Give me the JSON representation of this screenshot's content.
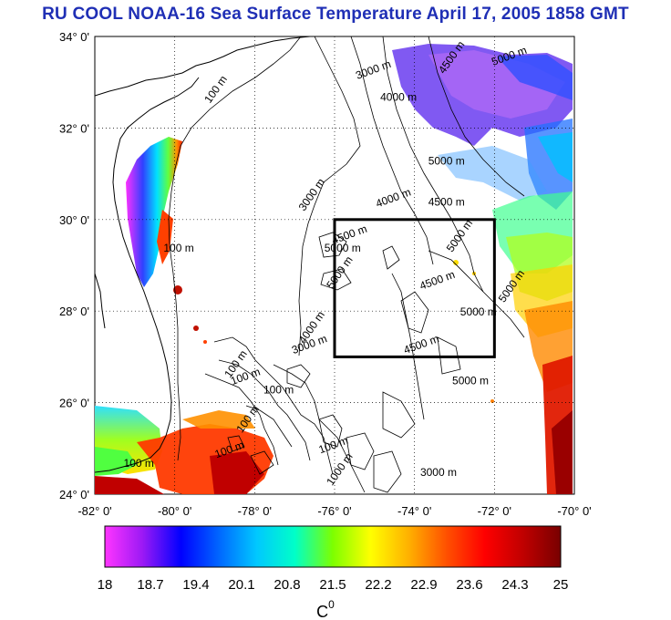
{
  "title": "RU COOL  NOAA-16 Sea Surface Temperature April 17, 2005 1858 GMT",
  "map": {
    "lat_labels": [
      "34° 0'",
      "32° 0'",
      "30° 0'",
      "28° 0'",
      "26° 0'",
      "24° 0'"
    ],
    "lon_labels": [
      "-82° 0'",
      "-80° 0'",
      "-78° 0'",
      "-76° 0'",
      "-74° 0'",
      "-72° 0'",
      "-70° 0'"
    ],
    "lat_range": [
      24,
      34
    ],
    "lon_range": [
      -82,
      -70
    ],
    "study_box": {
      "lon_min": -76,
      "lon_max": -72,
      "lat_min": 27,
      "lat_max": 30
    },
    "contour_labels": [
      {
        "text": "100 m",
        "lon": -78.9,
        "lat": 32.8
      },
      {
        "text": "3000 m",
        "lon": -75.0,
        "lat": 33.2
      },
      {
        "text": "4000 m",
        "lon": -74.4,
        "lat": 32.6
      },
      {
        "text": "4500 m",
        "lon": -73.0,
        "lat": 33.5
      },
      {
        "text": "5000 m",
        "lon": -71.6,
        "lat": 33.5
      },
      {
        "text": "5000 m",
        "lon": -73.2,
        "lat": 31.2
      },
      {
        "text": "3000 m",
        "lon": -76.5,
        "lat": 30.5
      },
      {
        "text": "4000 m",
        "lon": -74.5,
        "lat": 30.4
      },
      {
        "text": "4500 m",
        "lon": -73.2,
        "lat": 30.3
      },
      {
        "text": "5000 m",
        "lon": -72.8,
        "lat": 29.6
      },
      {
        "text": "4500 m",
        "lon": -75.6,
        "lat": 29.6
      },
      {
        "text": "5000 m",
        "lon": -75.8,
        "lat": 29.3
      },
      {
        "text": "5000 m",
        "lon": -75.8,
        "lat": 28.8
      },
      {
        "text": "4500 m",
        "lon": -73.4,
        "lat": 28.6
      },
      {
        "text": "5000 m",
        "lon": -72.4,
        "lat": 27.9
      },
      {
        "text": "5000 m",
        "lon": -71.5,
        "lat": 28.5
      },
      {
        "text": "4500 m",
        "lon": -73.8,
        "lat": 27.2
      },
      {
        "text": "5000 m",
        "lon": -72.6,
        "lat": 26.4
      },
      {
        "text": "4000 m",
        "lon": -76.5,
        "lat": 27.6
      },
      {
        "text": "3000 m",
        "lon": -76.6,
        "lat": 27.2
      },
      {
        "text": "100 m",
        "lon": -79.9,
        "lat": 29.3
      },
      {
        "text": "100 m",
        "lon": -78.4,
        "lat": 26.8
      },
      {
        "text": "100 m",
        "lon": -78.2,
        "lat": 26.5
      },
      {
        "text": "100 m",
        "lon": -77.4,
        "lat": 26.2
      },
      {
        "text": "100 m",
        "lon": -78.1,
        "lat": 25.6
      },
      {
        "text": "100 m",
        "lon": -78.6,
        "lat": 24.9
      },
      {
        "text": "100 m",
        "lon": -80.9,
        "lat": 24.6
      },
      {
        "text": "1000 m",
        "lon": -75.8,
        "lat": 24.5
      },
      {
        "text": "100 m",
        "lon": -76.0,
        "lat": 25.0
      },
      {
        "text": "3000 m",
        "lon": -73.4,
        "lat": 24.4
      }
    ]
  },
  "colorbar": {
    "ticks": [
      "18",
      "18.7",
      "19.4",
      "20.1",
      "20.8",
      "21.5",
      "22.2",
      "22.9",
      "23.6",
      "24.3",
      "25"
    ],
    "unit": "C",
    "unit_sup": "0",
    "min": 18,
    "max": 25,
    "stops": [
      "#ff35ff",
      "#9b19f5",
      "#0000ff",
      "#0066ff",
      "#00c8ff",
      "#00ffc8",
      "#7dff00",
      "#ffff00",
      "#ffb000",
      "#ff5000",
      "#ff0000",
      "#c00000",
      "#780000"
    ]
  }
}
